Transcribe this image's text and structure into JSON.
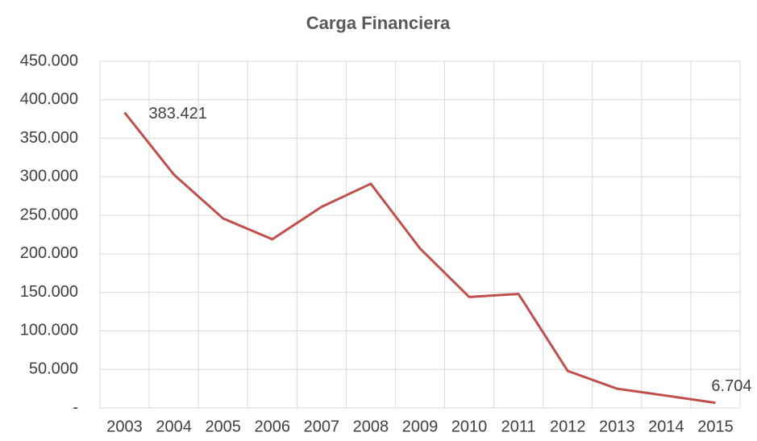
{
  "chart_data": {
    "type": "line",
    "title": "Carga Financiera",
    "categories": [
      "2003",
      "2004",
      "2005",
      "2006",
      "2007",
      "2008",
      "2009",
      "2010",
      "2011",
      "2012",
      "2013",
      "2014",
      "2015"
    ],
    "series": [
      {
        "name": "Carga Financiera",
        "color": "#c0504d",
        "values": [
          383421,
          303000,
          246000,
          219000,
          261000,
          291000,
          207000,
          144000,
          148000,
          48000,
          25000,
          16000,
          6704
        ],
        "value_labels": [
          "383.421",
          null,
          null,
          null,
          null,
          null,
          null,
          null,
          null,
          null,
          null,
          null,
          "6.704"
        ]
      }
    ],
    "ylim": [
      0,
      450000
    ],
    "yticks": [
      {
        "value": 0,
        "label": "-"
      },
      {
        "value": 50000,
        "label": "50.000"
      },
      {
        "value": 100000,
        "label": "100.000"
      },
      {
        "value": 150000,
        "label": "150.000"
      },
      {
        "value": 200000,
        "label": "200.000"
      },
      {
        "value": 250000,
        "label": "250.000"
      },
      {
        "value": 300000,
        "label": "300.000"
      },
      {
        "value": 350000,
        "label": "350.000"
      },
      {
        "value": 400000,
        "label": "400.000"
      },
      {
        "value": 450000,
        "label": "450.000"
      }
    ],
    "grid": true
  }
}
